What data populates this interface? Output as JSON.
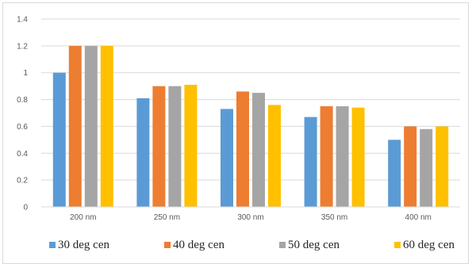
{
  "chart_data": {
    "type": "bar",
    "title": "",
    "xlabel": "",
    "ylabel": "",
    "categories": [
      "200 nm",
      "250 nm",
      "300 nm",
      "350 nm",
      "400 nm"
    ],
    "series": [
      {
        "name": "30 deg cen",
        "color": "#5b9bd5",
        "values": [
          1.0,
          0.81,
          0.73,
          0.67,
          0.5
        ]
      },
      {
        "name": "40 deg cen",
        "color": "#ed7d31",
        "values": [
          1.2,
          0.9,
          0.86,
          0.75,
          0.6
        ]
      },
      {
        "name": "50 deg cen",
        "color": "#a5a5a5",
        "values": [
          1.2,
          0.9,
          0.85,
          0.75,
          0.58
        ]
      },
      {
        "name": "60 deg cen",
        "color": "#ffc000",
        "values": [
          1.2,
          0.91,
          0.76,
          0.74,
          0.6
        ]
      }
    ],
    "ylim": [
      0,
      1.4
    ],
    "yticks": [
      "0",
      "0.2",
      "0.4",
      "0.6",
      "0.8",
      "1",
      "1.2",
      "1.4"
    ],
    "grid": true,
    "legend_position": "bottom"
  }
}
